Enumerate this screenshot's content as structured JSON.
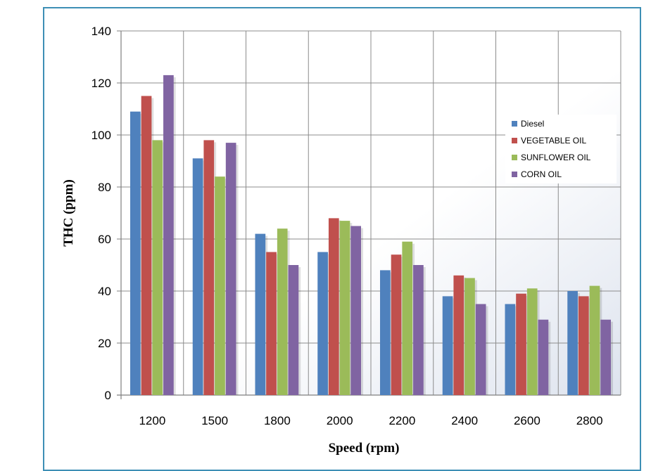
{
  "chart_data": {
    "type": "bar",
    "title": "",
    "xlabel": "Speed (rpm)",
    "ylabel": "THC (ppm)",
    "ylim": [
      0,
      140
    ],
    "yticks": [
      0,
      20,
      40,
      60,
      80,
      100,
      120,
      140
    ],
    "categories": [
      "1200",
      "1500",
      "1800",
      "2000",
      "2200",
      "2400",
      "2600",
      "2800"
    ],
    "series": [
      {
        "name": "Diesel",
        "color": "#4f81bd",
        "values": [
          109,
          91,
          62,
          55,
          48,
          38,
          35,
          40
        ]
      },
      {
        "name": "VEGETABLE OIL",
        "color": "#c0504d",
        "values": [
          115,
          98,
          55,
          68,
          54,
          46,
          39,
          38
        ]
      },
      {
        "name": "SUNFLOWER OIL",
        "color": "#9bbb59",
        "values": [
          98,
          84,
          64,
          67,
          59,
          45,
          41,
          42
        ]
      },
      {
        "name": "CORN OIL",
        "color": "#8064a2",
        "values": [
          123,
          97,
          50,
          65,
          50,
          35,
          29,
          29
        ]
      }
    ],
    "grid": true,
    "legend_position": "right"
  }
}
